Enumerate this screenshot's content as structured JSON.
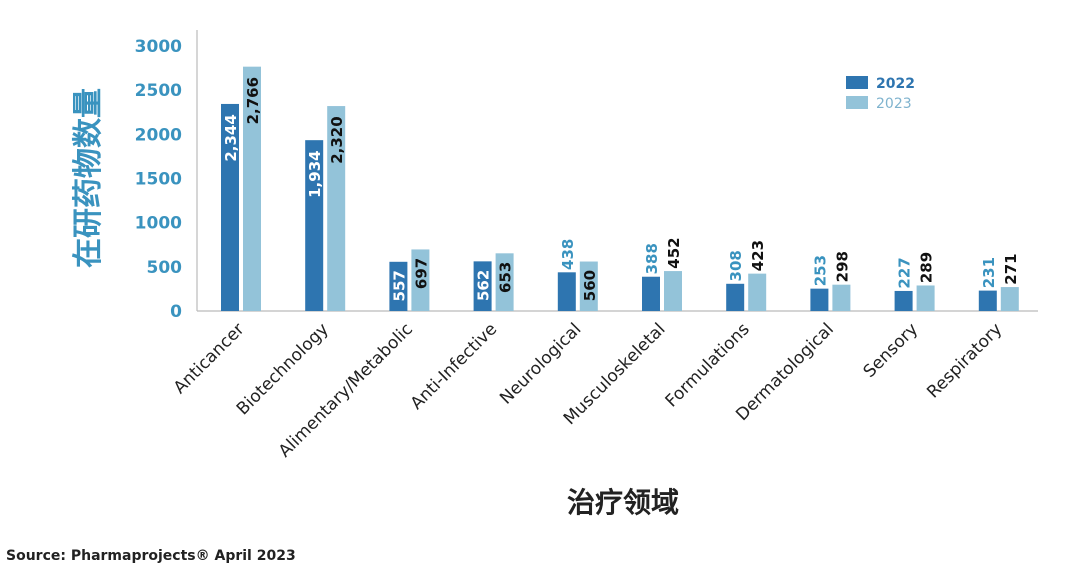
{
  "chart_data": {
    "type": "bar",
    "title": "",
    "xlabel": "治疗领域",
    "ylabel": "在研药物数量",
    "ylim": [
      0,
      3000
    ],
    "yticks": [
      0,
      500,
      1000,
      1500,
      2000,
      2500,
      3000
    ],
    "grid": false,
    "legend_position": "top-right",
    "categories": [
      "Anticancer",
      "Biotechnology",
      "Alimentary/Metabolic",
      "Anti-Infective",
      "Neurological",
      "Musculoskeletal",
      "Formulations",
      "Dermatological",
      "Sensory",
      "Respiratory"
    ],
    "series": [
      {
        "name": "2022",
        "color": "#2E75B0",
        "values": [
          2344,
          1934,
          557,
          562,
          438,
          388,
          308,
          253,
          227,
          231
        ],
        "labels": [
          "2,344",
          "1,934",
          "557",
          "562",
          "438",
          "388",
          "308",
          "253",
          "227",
          "231"
        ]
      },
      {
        "name": "2023",
        "color": "#93C3D9",
        "values": [
          2766,
          2320,
          697,
          653,
          560,
          452,
          423,
          298,
          289,
          271
        ],
        "labels": [
          "2,766",
          "2,320",
          "697",
          "653",
          "560",
          "452",
          "423",
          "298",
          "289",
          "271"
        ]
      }
    ],
    "colors": {
      "axis_text": "#3A93BF",
      "label_2022": "#3A93BF",
      "label_2023": "#111111",
      "inside_2022": "#ffffff",
      "inside_2023": "#111111",
      "axis_line": "#bbbbbb"
    }
  },
  "source": "Source: Pharmaprojects® April 2023"
}
